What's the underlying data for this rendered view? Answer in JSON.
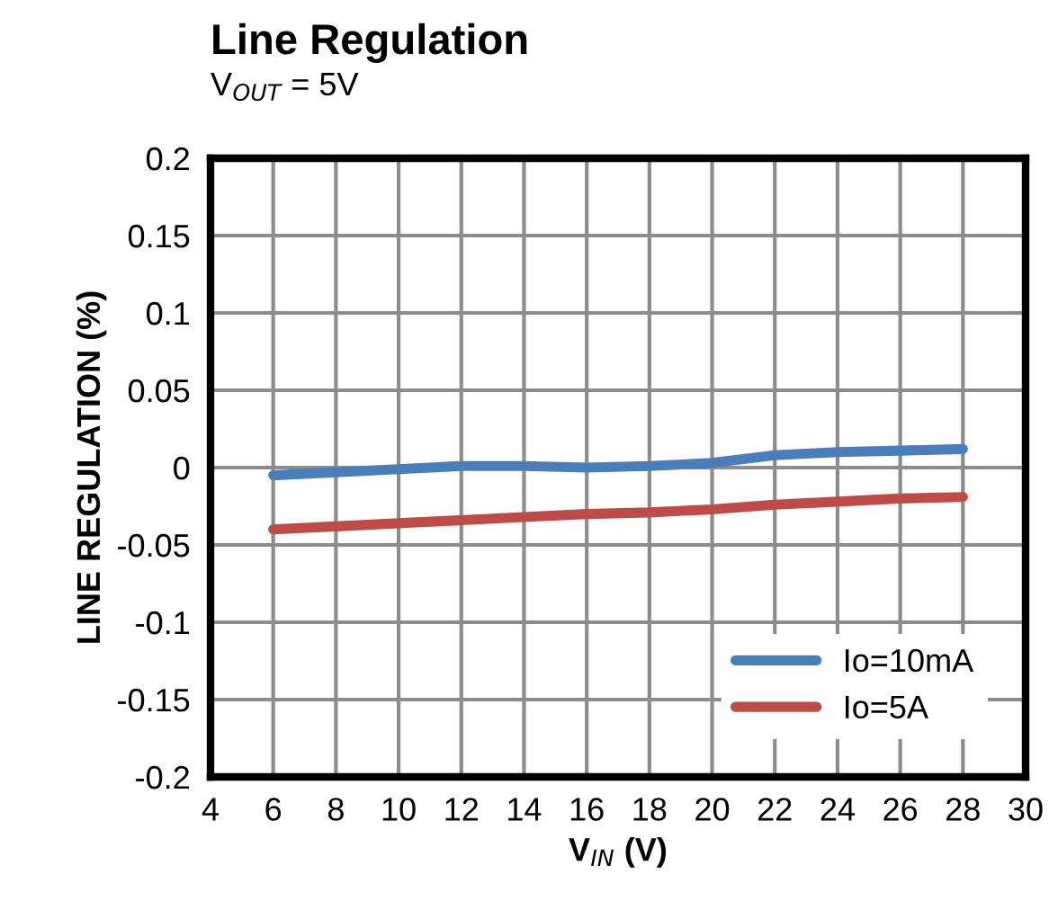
{
  "chart_data": {
    "type": "line",
    "title": "Line Regulation",
    "subtitle": "V$_{OUT}$ = 5V",
    "xlabel": "V$_{IN}$ (V)",
    "ylabel": "LINE REGULATION (%)",
    "x": [
      6,
      8,
      10,
      12,
      14,
      16,
      18,
      20,
      22,
      24,
      26,
      28
    ],
    "series": [
      {
        "name": "Io=10mA",
        "color": "#4a7ebb",
        "values": [
          -0.005,
          -0.003,
          -0.001,
          0.001,
          0.001,
          0.0,
          0.001,
          0.003,
          0.008,
          0.01,
          0.011,
          0.012
        ]
      },
      {
        "name": "Io=5A",
        "color": "#be4b48",
        "values": [
          -0.04,
          -0.038,
          -0.036,
          -0.034,
          -0.032,
          -0.03,
          -0.029,
          -0.027,
          -0.024,
          -0.022,
          -0.02,
          -0.019
        ]
      }
    ],
    "xlim": [
      4,
      30
    ],
    "xticks": [
      4,
      6,
      8,
      10,
      12,
      14,
      16,
      18,
      20,
      22,
      24,
      26,
      28,
      30
    ],
    "ylim": [
      -0.2,
      0.2
    ],
    "yticks": [
      -0.2,
      -0.15,
      -0.1,
      -0.05,
      0,
      0.05,
      0.1,
      0.15,
      0.2
    ],
    "grid": true,
    "legend": "bottom right",
    "marker": "none",
    "line_style": "solid"
  }
}
